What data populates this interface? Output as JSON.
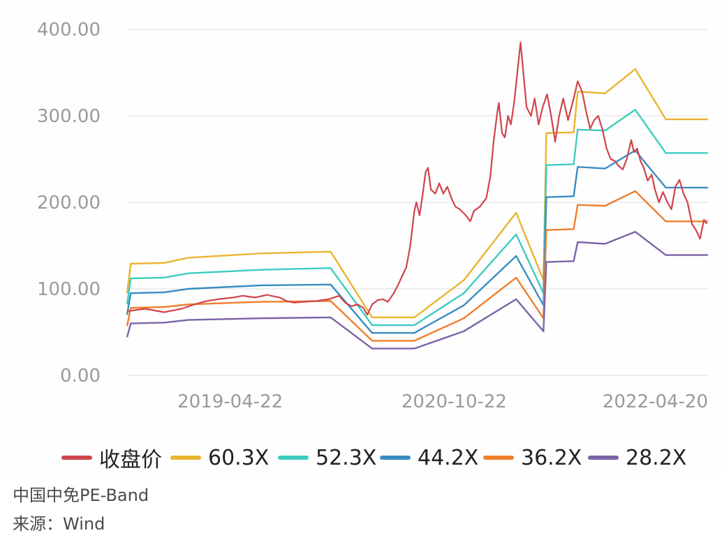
{
  "chart_data": {
    "type": "line",
    "title": "",
    "xlabel": "",
    "ylabel": "",
    "ylim": [
      0,
      400
    ],
    "y_ticks": [
      "0.00",
      "100.00",
      "200.00",
      "300.00",
      "400.00"
    ],
    "x_tick_labels": [
      "2019-04-22",
      "2020-10-22",
      "2022-04-20"
    ],
    "grid": "horizontal",
    "legend_placement": "bottom",
    "x_range": [
      "2018-08-01",
      "2022-07-15"
    ],
    "series": [
      {
        "name": "收盘价",
        "color": "#d0444c",
        "points": [
          [
            "2018-08-01",
            74
          ],
          [
            "2018-09-15",
            77
          ],
          [
            "2018-11-01",
            73
          ],
          [
            "2018-12-15",
            77
          ],
          [
            "2019-01-15",
            82
          ],
          [
            "2019-02-15",
            86
          ],
          [
            "2019-03-15",
            88
          ],
          [
            "2019-04-22",
            90
          ],
          [
            "2019-05-15",
            92
          ],
          [
            "2019-06-15",
            90
          ],
          [
            "2019-07-15",
            93
          ],
          [
            "2019-08-15",
            90
          ],
          [
            "2019-09-01",
            86
          ],
          [
            "2019-09-20",
            84
          ],
          [
            "2019-10-15",
            85
          ],
          [
            "2019-11-15",
            86
          ],
          [
            "2019-12-15",
            88
          ],
          [
            "2020-01-10",
            92
          ],
          [
            "2020-01-25",
            84
          ],
          [
            "2020-02-10",
            80
          ],
          [
            "2020-02-25",
            82
          ],
          [
            "2020-03-10",
            78
          ],
          [
            "2020-03-20",
            70
          ],
          [
            "2020-04-01",
            82
          ],
          [
            "2020-04-15",
            87
          ],
          [
            "2020-04-28",
            88
          ],
          [
            "2020-05-10",
            85
          ],
          [
            "2020-05-25",
            95
          ],
          [
            "2020-06-05",
            105
          ],
          [
            "2020-06-15",
            115
          ],
          [
            "2020-06-25",
            125
          ],
          [
            "2020-07-05",
            150
          ],
          [
            "2020-07-15",
            190
          ],
          [
            "2020-07-20",
            200
          ],
          [
            "2020-07-28",
            185
          ],
          [
            "2020-08-05",
            210
          ],
          [
            "2020-08-12",
            235
          ],
          [
            "2020-08-18",
            240
          ],
          [
            "2020-08-25",
            215
          ],
          [
            "2020-09-05",
            210
          ],
          [
            "2020-09-15",
            222
          ],
          [
            "2020-09-25",
            210
          ],
          [
            "2020-10-05",
            218
          ],
          [
            "2020-10-15",
            205
          ],
          [
            "2020-10-25",
            195
          ],
          [
            "2020-11-05",
            192
          ],
          [
            "2020-11-20",
            185
          ],
          [
            "2020-12-01",
            178
          ],
          [
            "2020-12-10",
            190
          ],
          [
            "2020-12-25",
            195
          ],
          [
            "2021-01-10",
            205
          ],
          [
            "2021-01-20",
            230
          ],
          [
            "2021-01-28",
            270
          ],
          [
            "2021-02-05",
            300
          ],
          [
            "2021-02-10",
            315
          ],
          [
            "2021-02-18",
            280
          ],
          [
            "2021-02-25",
            275
          ],
          [
            "2021-03-05",
            300
          ],
          [
            "2021-03-12",
            290
          ],
          [
            "2021-03-20",
            315
          ],
          [
            "2021-03-28",
            350
          ],
          [
            "2021-04-05",
            385
          ],
          [
            "2021-04-12",
            350
          ],
          [
            "2021-04-20",
            310
          ],
          [
            "2021-05-01",
            300
          ],
          [
            "2021-05-10",
            320
          ],
          [
            "2021-05-20",
            290
          ],
          [
            "2021-05-30",
            310
          ],
          [
            "2021-06-10",
            325
          ],
          [
            "2021-06-20",
            300
          ],
          [
            "2021-06-30",
            270
          ],
          [
            "2021-07-10",
            300
          ],
          [
            "2021-07-20",
            320
          ],
          [
            "2021-08-01",
            295
          ],
          [
            "2021-08-15",
            320
          ],
          [
            "2021-08-25",
            340
          ],
          [
            "2021-09-05",
            328
          ],
          [
            "2021-09-15",
            305
          ],
          [
            "2021-09-25",
            285
          ],
          [
            "2021-10-05",
            295
          ],
          [
            "2021-10-15",
            300
          ],
          [
            "2021-10-25",
            285
          ],
          [
            "2021-11-05",
            262
          ],
          [
            "2021-11-15",
            250
          ],
          [
            "2021-11-25",
            248
          ],
          [
            "2021-12-05",
            242
          ],
          [
            "2021-12-15",
            238
          ],
          [
            "2021-12-25",
            250
          ],
          [
            "2022-01-05",
            272
          ],
          [
            "2022-01-12",
            258
          ],
          [
            "2022-01-20",
            262
          ],
          [
            "2022-01-28",
            248
          ],
          [
            "2022-02-05",
            240
          ],
          [
            "2022-02-15",
            225
          ],
          [
            "2022-02-25",
            232
          ],
          [
            "2022-03-05",
            215
          ],
          [
            "2022-03-15",
            200
          ],
          [
            "2022-03-25",
            212
          ],
          [
            "2022-04-05",
            200
          ],
          [
            "2022-04-15",
            192
          ],
          [
            "2022-04-25",
            218
          ],
          [
            "2022-05-05",
            226
          ],
          [
            "2022-05-15",
            210
          ],
          [
            "2022-05-25",
            200
          ],
          [
            "2022-06-05",
            175
          ],
          [
            "2022-06-15",
            168
          ],
          [
            "2022-06-25",
            158
          ],
          [
            "2022-07-05",
            180
          ],
          [
            "2022-07-12",
            175
          ]
        ]
      },
      {
        "name": "60.3X",
        "color": "#eab430",
        "points": [
          [
            "2018-08-01",
            95
          ],
          [
            "2018-08-10",
            129
          ],
          [
            "2018-11-01",
            130
          ],
          [
            "2019-01-01",
            136
          ],
          [
            "2019-07-01",
            141
          ],
          [
            "2019-12-20",
            143
          ],
          [
            "2020-04-01",
            67
          ],
          [
            "2020-07-15",
            67
          ],
          [
            "2020-11-15",
            110
          ],
          [
            "2021-03-25",
            188
          ],
          [
            "2021-06-01",
            110
          ],
          [
            "2021-06-08",
            280
          ],
          [
            "2021-08-15",
            281
          ],
          [
            "2021-08-25",
            328
          ],
          [
            "2021-11-01",
            326
          ],
          [
            "2022-01-15",
            354
          ],
          [
            "2022-04-01",
            296
          ],
          [
            "2022-07-15",
            296
          ]
        ]
      },
      {
        "name": "52.3X",
        "color": "#3ecbc0",
        "points": [
          [
            "2018-08-01",
            82
          ],
          [
            "2018-08-10",
            112
          ],
          [
            "2018-11-01",
            113
          ],
          [
            "2019-01-01",
            118
          ],
          [
            "2019-07-01",
            122
          ],
          [
            "2019-12-20",
            124
          ],
          [
            "2020-04-01",
            58
          ],
          [
            "2020-07-15",
            58
          ],
          [
            "2020-11-15",
            95
          ],
          [
            "2021-03-25",
            163
          ],
          [
            "2021-06-01",
            95
          ],
          [
            "2021-06-08",
            243
          ],
          [
            "2021-08-15",
            244
          ],
          [
            "2021-08-25",
            284
          ],
          [
            "2021-11-01",
            283
          ],
          [
            "2022-01-15",
            307
          ],
          [
            "2022-04-01",
            257
          ],
          [
            "2022-07-15",
            257
          ]
        ]
      },
      {
        "name": "44.2X",
        "color": "#3a8dc2",
        "points": [
          [
            "2018-08-01",
            70
          ],
          [
            "2018-08-10",
            95
          ],
          [
            "2018-11-01",
            96
          ],
          [
            "2019-01-01",
            100
          ],
          [
            "2019-07-01",
            104
          ],
          [
            "2019-12-20",
            105
          ],
          [
            "2020-04-01",
            49
          ],
          [
            "2020-07-15",
            49
          ],
          [
            "2020-11-15",
            81
          ],
          [
            "2021-03-25",
            138
          ],
          [
            "2021-06-01",
            81
          ],
          [
            "2021-06-08",
            206
          ],
          [
            "2021-08-15",
            207
          ],
          [
            "2021-08-25",
            241
          ],
          [
            "2021-11-01",
            239
          ],
          [
            "2022-01-15",
            260
          ],
          [
            "2022-04-01",
            217
          ],
          [
            "2022-07-15",
            217
          ]
        ]
      },
      {
        "name": "36.2X",
        "color": "#ef7e2c",
        "points": [
          [
            "2018-08-01",
            57
          ],
          [
            "2018-08-10",
            78
          ],
          [
            "2018-11-01",
            79
          ],
          [
            "2019-01-01",
            82
          ],
          [
            "2019-07-01",
            85
          ],
          [
            "2019-12-20",
            86
          ],
          [
            "2020-04-01",
            40
          ],
          [
            "2020-07-15",
            40
          ],
          [
            "2020-11-15",
            66
          ],
          [
            "2021-03-25",
            113
          ],
          [
            "2021-06-01",
            66
          ],
          [
            "2021-06-08",
            168
          ],
          [
            "2021-08-15",
            169
          ],
          [
            "2021-08-25",
            197
          ],
          [
            "2021-11-01",
            196
          ],
          [
            "2022-01-15",
            213
          ],
          [
            "2022-04-01",
            178
          ],
          [
            "2022-07-15",
            178
          ]
        ]
      },
      {
        "name": "28.2X",
        "color": "#7b64a7",
        "points": [
          [
            "2018-08-01",
            44
          ],
          [
            "2018-08-10",
            60
          ],
          [
            "2018-11-01",
            61
          ],
          [
            "2019-01-01",
            64
          ],
          [
            "2019-07-01",
            66
          ],
          [
            "2019-12-20",
            67
          ],
          [
            "2020-04-01",
            31
          ],
          [
            "2020-07-15",
            31
          ],
          [
            "2020-11-15",
            51
          ],
          [
            "2021-03-25",
            88
          ],
          [
            "2021-06-01",
            51
          ],
          [
            "2021-06-08",
            131
          ],
          [
            "2021-08-15",
            132
          ],
          [
            "2021-08-25",
            154
          ],
          [
            "2021-11-01",
            152
          ],
          [
            "2022-01-15",
            166
          ],
          [
            "2022-04-01",
            139
          ],
          [
            "2022-07-15",
            139
          ]
        ]
      }
    ]
  },
  "captions": {
    "title": "中国中免PE-Band",
    "source": "来源：Wind"
  }
}
